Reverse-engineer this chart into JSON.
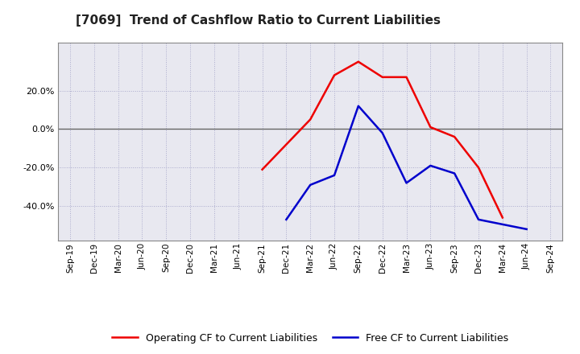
{
  "title": "[7069]  Trend of Cashflow Ratio to Current Liabilities",
  "x_labels": [
    "Sep-19",
    "Dec-19",
    "Mar-20",
    "Jun-20",
    "Sep-20",
    "Dec-20",
    "Mar-21",
    "Jun-21",
    "Sep-21",
    "Dec-21",
    "Mar-22",
    "Jun-22",
    "Sep-22",
    "Dec-22",
    "Mar-23",
    "Jun-23",
    "Sep-23",
    "Dec-23",
    "Mar-24",
    "Jun-24",
    "Sep-24"
  ],
  "operating_cf": [
    null,
    null,
    null,
    null,
    null,
    null,
    null,
    null,
    -0.21,
    -0.08,
    0.05,
    0.28,
    0.35,
    0.27,
    0.27,
    0.01,
    -0.04,
    -0.2,
    -0.46,
    null,
    null
  ],
  "free_cf": [
    null,
    null,
    null,
    null,
    null,
    null,
    null,
    null,
    null,
    -0.47,
    -0.29,
    -0.24,
    0.12,
    -0.02,
    -0.28,
    -0.19,
    -0.23,
    -0.47,
    null,
    -0.52,
    null
  ],
  "operating_cf_color": "#EE0000",
  "free_cf_color": "#0000CC",
  "ylim_min": -0.58,
  "ylim_max": 0.45,
  "yticks": [
    -0.4,
    -0.2,
    0.0,
    0.2
  ],
  "background_color": "#FFFFFF",
  "plot_bg_color": "#E8E8F0",
  "grid_color": "#AAAACC",
  "legend_labels": [
    "Operating CF to Current Liabilities",
    "Free CF to Current Liabilities"
  ]
}
